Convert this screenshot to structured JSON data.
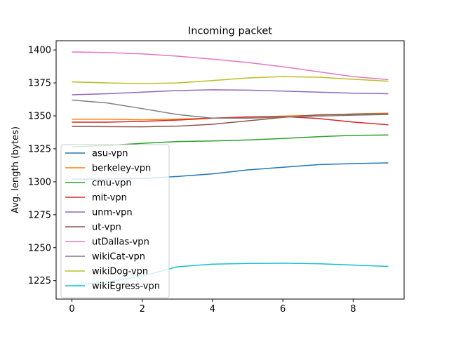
{
  "chart_data": {
    "type": "line",
    "title": "Incoming packet",
    "xlabel": "",
    "ylabel": "Avg. length (bytes)",
    "xlim": [
      -0.45,
      9.45
    ],
    "ylim": [
      1211,
      1407
    ],
    "x": [
      0,
      1,
      2,
      3,
      4,
      5,
      6,
      7,
      8,
      9
    ],
    "xticks": [
      0,
      2,
      4,
      6,
      8
    ],
    "yticks": [
      1225,
      1250,
      1275,
      1300,
      1325,
      1350,
      1375,
      1400
    ],
    "grid": false,
    "legend_position": "lower-left",
    "series": [
      {
        "name": "asu-vpn",
        "color": "#1f77b4",
        "values": [
          1302,
          1302,
          1302.5,
          1304,
          1306,
          1309,
          1311,
          1313,
          1313.8,
          1314.3
        ]
      },
      {
        "name": "berkeley-vpn",
        "color": "#ff7f0e",
        "values": [
          1347.5,
          1347.5,
          1347,
          1347.5,
          1348.3,
          1349,
          1349.8,
          1350.5,
          1351.5,
          1352
        ]
      },
      {
        "name": "cmu-vpn",
        "color": "#2ca02c",
        "values": [
          1326.5,
          1327.5,
          1329.2,
          1330.5,
          1331,
          1331.7,
          1332.8,
          1334.2,
          1335.2,
          1335.5
        ]
      },
      {
        "name": "mit-vpn",
        "color": "#d62728",
        "values": [
          1345.2,
          1345.2,
          1345.8,
          1346.8,
          1348.2,
          1349.2,
          1349.5,
          1348,
          1345.3,
          1343.2
        ]
      },
      {
        "name": "unm-vpn",
        "color": "#9467bd",
        "values": [
          1366,
          1366.8,
          1368,
          1369.2,
          1369.8,
          1369.5,
          1368.8,
          1368,
          1367.2,
          1366.8
        ]
      },
      {
        "name": "ut-vpn",
        "color": "#8c564b",
        "values": [
          1342,
          1341.8,
          1341.7,
          1342.2,
          1343.6,
          1346.2,
          1348.8,
          1350.8,
          1351.3,
          1351.5
        ]
      },
      {
        "name": "utDallas-vpn",
        "color": "#e377c2",
        "values": [
          1398.5,
          1398,
          1397,
          1395.3,
          1393,
          1390.5,
          1387.3,
          1383.5,
          1379.8,
          1377.5
        ]
      },
      {
        "name": "wikiCat-vpn",
        "color": "#7f7f7f",
        "values": [
          1362,
          1359.8,
          1355.5,
          1351,
          1348.3,
          1348.2,
          1349,
          1349.8,
          1350.5,
          1351
        ]
      },
      {
        "name": "wikiDog-vpn",
        "color": "#bcbd22",
        "values": [
          1375.8,
          1375,
          1374.5,
          1375,
          1376.8,
          1378.8,
          1379.8,
          1379.3,
          1377.8,
          1376.3
        ]
      },
      {
        "name": "wikiEgress-vpn",
        "color": "#17becf",
        "values": [
          1221.5,
          1224,
          1228.5,
          1235.5,
          1237.5,
          1238,
          1238.2,
          1237.8,
          1236.8,
          1235.8
        ]
      }
    ]
  }
}
